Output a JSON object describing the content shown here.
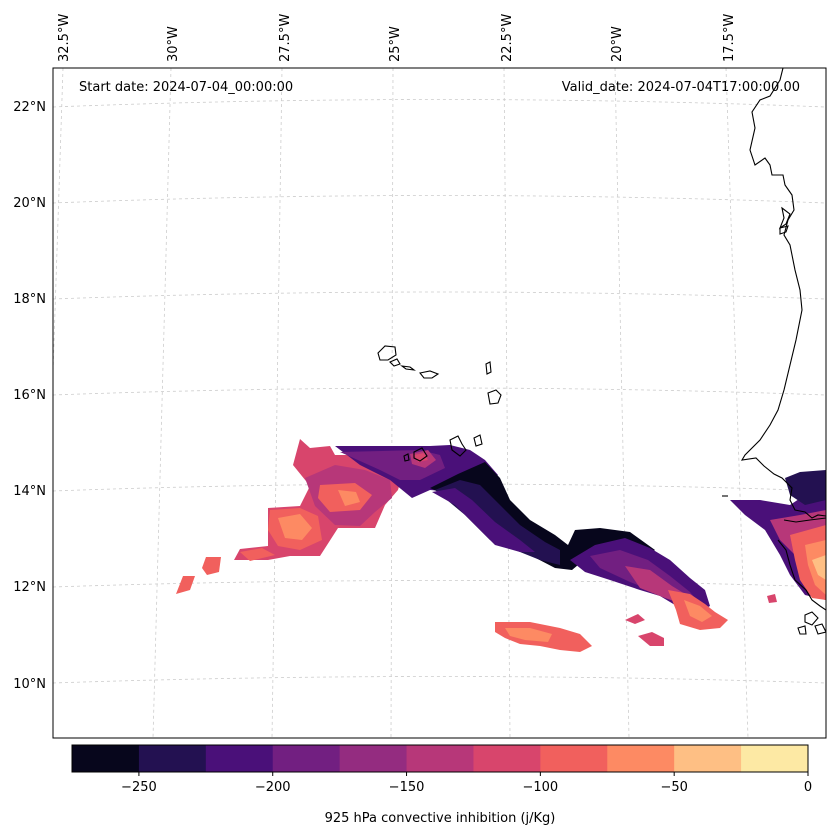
{
  "header": {
    "start_date": "Start date: 2024-07-04_00:00:00",
    "valid_date": "Valid_date: 2024-07-04T17:00:00.00"
  },
  "longitude_labels": [
    "32.5°W",
    "30°W",
    "27.5°W",
    "25°W",
    "22.5°W",
    "20°W",
    "17.5°W"
  ],
  "latitude_labels": [
    "22°N",
    "20°N",
    "18°N",
    "16°N",
    "14°N",
    "12°N",
    "10°N"
  ],
  "colorbar": {
    "label": "925 hPa convective inhibition (j/Kg)",
    "tick_labels": [
      "−250",
      "−200",
      "−150",
      "−100",
      "−50",
      "0"
    ],
    "levels": [
      -275,
      -250,
      -225,
      -200,
      -175,
      -150,
      -125,
      -100,
      -75,
      -50,
      -25,
      0
    ],
    "colors": [
      "#07061c",
      "#231151",
      "#4a1079",
      "#721f81",
      "#942c80",
      "#b73779",
      "#d8456c",
      "#f1605d",
      "#fd8a63",
      "#febf84",
      "#fde9a4"
    ]
  },
  "map": {
    "extent_lon": [
      -33,
      -16
    ],
    "extent_lat": [
      9,
      22.8
    ],
    "gridlines": true,
    "coastline_color": "#000000"
  }
}
